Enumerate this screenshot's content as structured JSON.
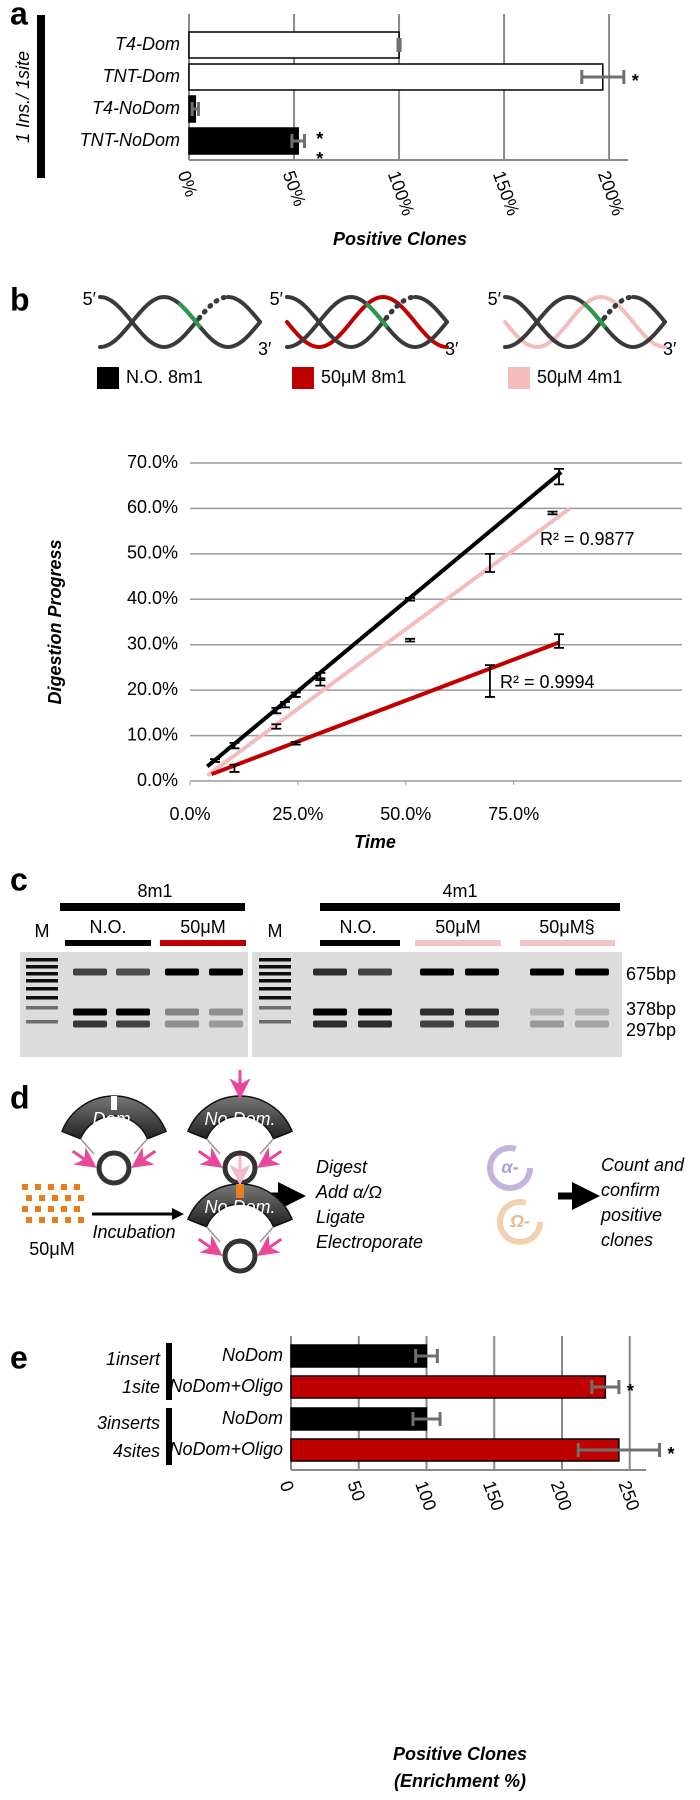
{
  "panel_labels": [
    "a",
    "b",
    "c",
    "d",
    "e"
  ],
  "chart_data": [
    {
      "type": "bar",
      "orientation": "horizontal",
      "group_label": "1 Ins./ 1site",
      "categories": [
        "T4-Dom",
        "TNT-Dom",
        "T4-NoDom",
        "TNT-NoDom"
      ],
      "values": [
        100,
        197,
        3,
        52
      ],
      "errors": [
        0.5,
        10,
        1.5,
        3
      ],
      "colors": [
        "#ffffff",
        "#ffffff",
        "#000000",
        "#000000"
      ],
      "significance": [
        null,
        "*",
        null,
        "**"
      ],
      "xlim": [
        0,
        209
      ],
      "xticks": [
        {
          "value": 0,
          "label": "0%"
        },
        {
          "value": 50,
          "label": "50%"
        },
        {
          "value": 100,
          "label": "100%"
        },
        {
          "value": 150,
          "label": "150%"
        },
        {
          "value": 200,
          "label": "200%"
        }
      ],
      "xlabel": [
        "Positive Clones"
      ],
      "grid": true
    },
    {
      "type": "scatter",
      "xlabel": "Time",
      "ylabel": "Digestion Progress",
      "xlim": [
        0,
        114
      ],
      "xticks": [
        {
          "value": 0,
          "label": "0.0%"
        },
        {
          "value": 25,
          "label": "25.0%"
        },
        {
          "value": 50,
          "label": "50.0%"
        },
        {
          "value": 75,
          "label": "75.0%"
        }
      ],
      "ylim": [
        0,
        70
      ],
      "yticks": [
        {
          "value": 0,
          "label": "0.0%"
        },
        {
          "value": 10,
          "label": "10.0%"
        },
        {
          "value": 20,
          "label": "20.0%"
        },
        {
          "value": 30,
          "label": "30.0%"
        },
        {
          "value": 40,
          "label": "40.0%"
        },
        {
          "value": 50,
          "label": "50.0%"
        },
        {
          "value": 60,
          "label": "60.0%"
        },
        {
          "value": 70,
          "label": "70.0%"
        }
      ],
      "grid": true,
      "strand_ends": [
        "5′",
        "3′"
      ],
      "series": [
        {
          "name": "N.O. 8m1",
          "color": "#000000",
          "x": [
            5.8,
            10.3,
            20,
            22,
            24.5,
            30.2,
            51,
            69.5,
            85.5
          ],
          "values": [
            4.5,
            7.8,
            15.5,
            16.8,
            19,
            23,
            40,
            48,
            67
          ],
          "errors": [
            0.3,
            0.6,
            0.6,
            0.6,
            0.5,
            0.8,
            0.3,
            2,
            1.7
          ],
          "trend_x": [
            4,
            86
          ],
          "trend_y": [
            3.2,
            68
          ]
        },
        {
          "name": "50μM 8m1",
          "color": "#c00000",
          "x": [
            10.3,
            24.5,
            69.5,
            85.5
          ],
          "values": [
            2.8,
            8.3,
            22,
            30.8
          ],
          "errors": [
            0.8,
            0.3,
            3.5,
            1.5
          ],
          "trend_x": [
            5,
            85.5
          ],
          "trend_y": [
            1.5,
            30.5
          ]
        },
        {
          "name": "50μM 4m1",
          "color": "#f4bcbc",
          "x": [
            20,
            30.2,
            51,
            84
          ],
          "values": [
            12,
            21.8,
            31,
            59
          ],
          "errors": [
            0.5,
            0.8,
            0.3,
            0.3
          ],
          "trend_x": [
            4,
            88
          ],
          "trend_y": [
            1.2,
            60
          ]
        }
      ],
      "annotations": [
        "R² = 0.9877",
        "R² = 0.9994"
      ]
    },
    {
      "type": "bar",
      "orientation": "horizontal",
      "group_labels": [
        [
          "1insert",
          "1site"
        ],
        [
          "3inserts",
          "4sites"
        ]
      ],
      "categories": [
        "NoDom",
        "NoDom+Oligo",
        "NoDom",
        "NoDom+Oligo"
      ],
      "values": [
        100,
        232,
        100,
        242
      ],
      "errors": [
        8,
        10,
        10,
        30
      ],
      "colors": [
        "#000000",
        "#c00000",
        "#000000",
        "#c00000"
      ],
      "significance": [
        null,
        "*",
        null,
        "*"
      ],
      "xlim": [
        0,
        262
      ],
      "xticks": [
        0,
        50,
        100,
        150,
        200,
        250
      ],
      "xlabel": [
        "Positive Clones",
        "(Enrichment %)"
      ],
      "grid": true
    }
  ],
  "gel": {
    "marker": "M",
    "groups": [
      {
        "label": "8m1",
        "lanes": [
          "N.O.",
          "50μM"
        ]
      },
      {
        "label": "4m1",
        "lanes": [
          "N.O.",
          "50μM",
          "50μM§"
        ]
      }
    ],
    "band_sizes": [
      "675bp",
      "378bp",
      "297bp"
    ]
  },
  "diagram": {
    "domain_labels": [
      "Dom.",
      "No Dom.",
      "No Dom."
    ],
    "oligo": "50μM",
    "incubation": "Incubation",
    "steps": [
      "Digest",
      "Add α/Ω",
      "Ligate",
      "Electroporate"
    ],
    "adapters": [
      "α-",
      "Ω-"
    ],
    "result": [
      "Count and",
      "confirm",
      "positive",
      "clones"
    ]
  }
}
